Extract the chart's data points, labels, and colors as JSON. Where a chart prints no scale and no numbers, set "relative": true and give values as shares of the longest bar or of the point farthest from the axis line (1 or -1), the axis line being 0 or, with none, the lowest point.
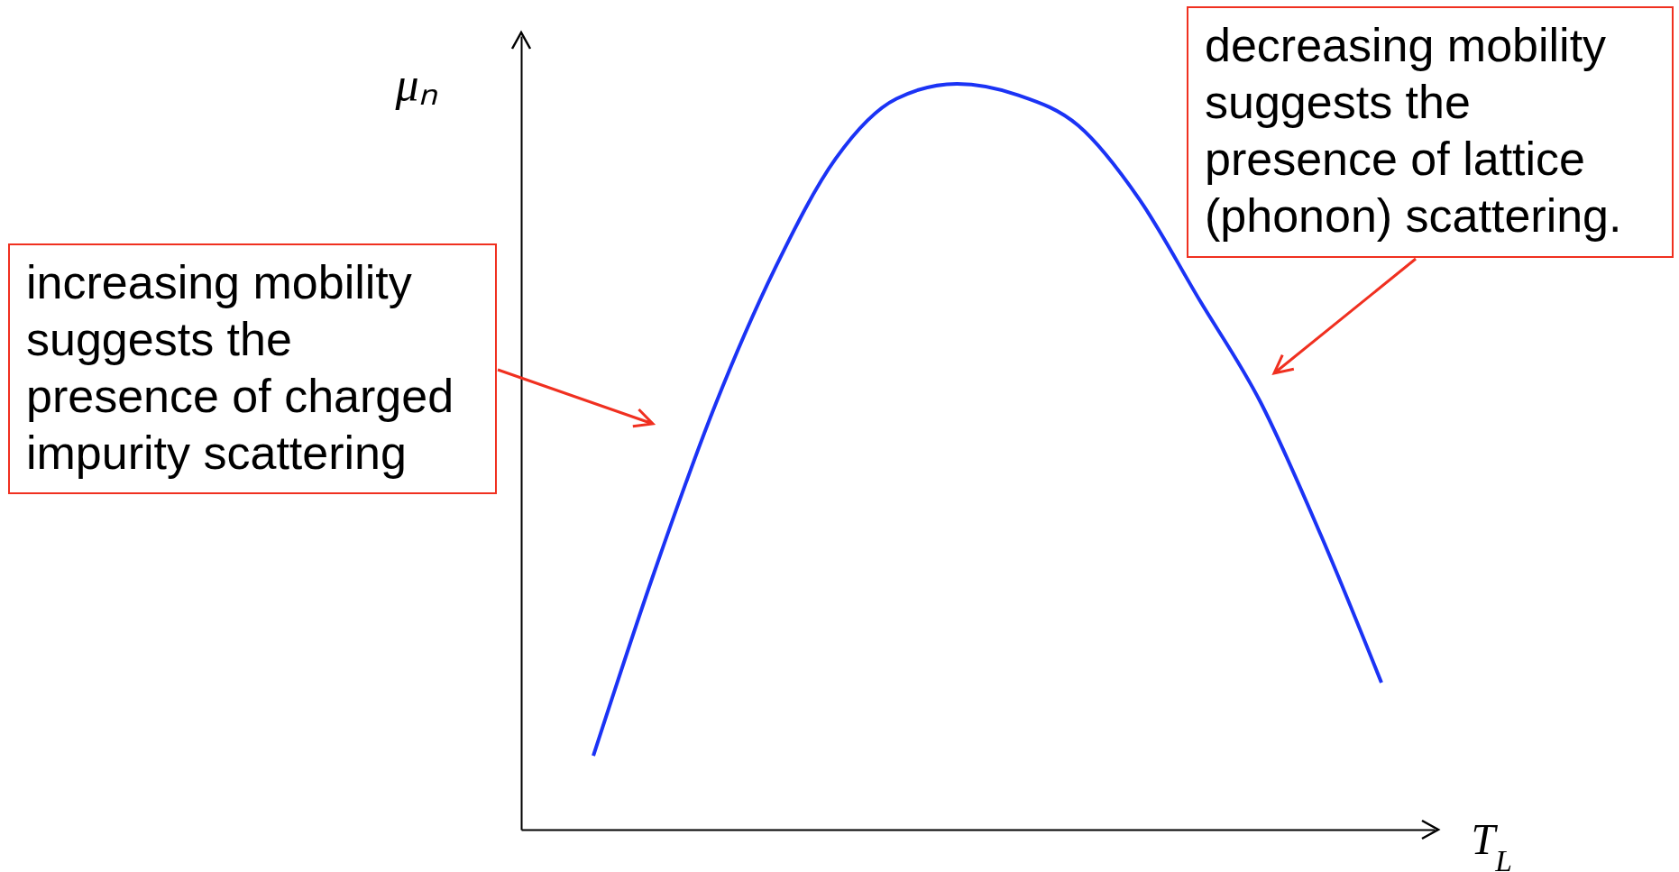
{
  "chart_data": {
    "type": "line",
    "relative": true,
    "xlabel": "T$_{L}$",
    "ylabel": "μₙ",
    "categories": [
      null,
      null,
      null,
      null,
      null,
      null,
      null,
      null,
      null,
      null,
      null,
      null,
      null,
      null
    ],
    "series": [
      {
        "color": "#1b33f5",
        "values": [
          0.099,
          0.344,
          0.567,
          0.753,
          0.9,
          0.98,
          1.0,
          0.985,
          0.944,
          0.846,
          0.71,
          0.574,
          0.395,
          0.197
        ]
      }
    ],
    "annotations": [
      "increasing mobility suggests the presence of charged impurity scattering",
      "decreasing mobility suggests the presence of lattice (phonon) scattering."
    ],
    "grid": false,
    "legend": false
  }
}
